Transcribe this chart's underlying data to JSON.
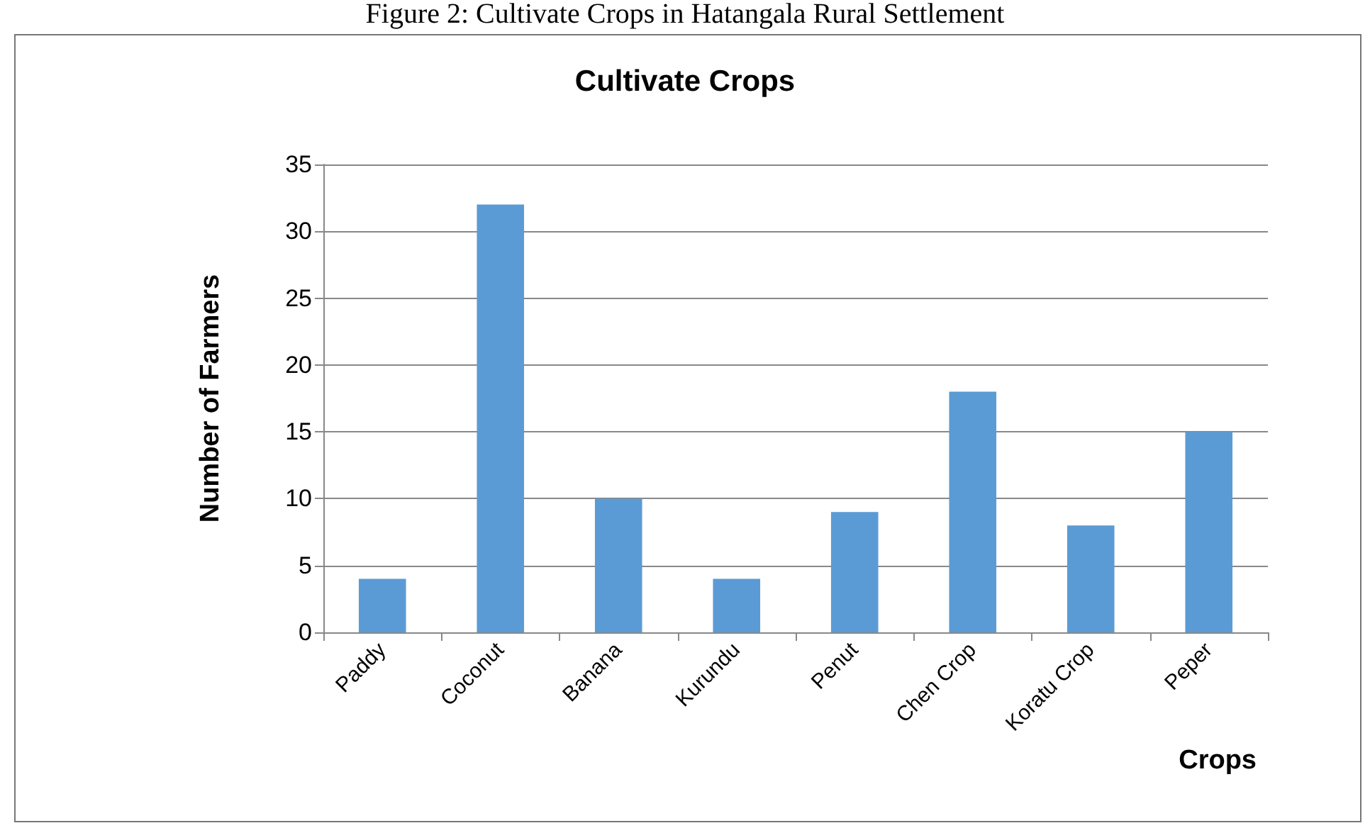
{
  "chart_data": {
    "type": "bar",
    "title": "Cultivate Crops",
    "xlabel": "Crops",
    "ylabel": "Number of Farmers",
    "annotations": [
      "Figure 2: Cultivate Crops in Hatangala Rural Settlement"
    ],
    "categories": [
      "Paddy",
      "Coconut",
      "Banana",
      "Kurundu",
      "Penut",
      "Chen Crop",
      "Koratu Crop",
      "Peper"
    ],
    "values": [
      4,
      32,
      10,
      4,
      9,
      18,
      8,
      15
    ],
    "color": "#5b9bd5",
    "ylim": [
      0,
      35
    ],
    "yticks": [
      0,
      5,
      10,
      15,
      20,
      25,
      30,
      35
    ],
    "grid": "y"
  }
}
